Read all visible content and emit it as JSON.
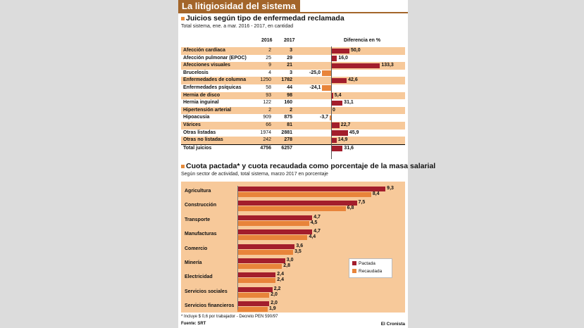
{
  "title": "La litigiosidad del sistema",
  "section1": {
    "title": "Juicios según tipo de enfermedad reclamada",
    "subtitle": "Total sistema, ene. a mar. 2016 - 2017, en cantidad",
    "col_2016": "2016",
    "col_2017": "2017",
    "col_diff": "Diferencia en %"
  },
  "section2": {
    "title": "Cuota pactada* y cuota recaudada como porcentaje de la masa salarial",
    "subtitle": "Según sector de actividad, total sistema, marzo 2017 en porcentaje"
  },
  "footnote": "* Incluye $ 0,6 por trabajador - Decreto PEN 590/97",
  "source": "Fuente: SRT",
  "brand": "El Cronista",
  "colors": {
    "pos": "#a31e2c",
    "neg": "#e8843a",
    "band": "#f7c99a",
    "title": "#a3652a"
  },
  "chart_data": [
    {
      "type": "table",
      "columns": [
        "",
        "2016",
        "2017",
        "Diferencia en %"
      ],
      "rows": [
        {
          "label": "Afección cardíaca",
          "v2016": "2",
          "v2017": "3",
          "diff": 50.0,
          "diff_label": "50,0"
        },
        {
          "label": "Afección pulmonar (EPOC)",
          "v2016": "25",
          "v2017": "29",
          "diff": 16.0,
          "diff_label": "16,0"
        },
        {
          "label": "Afecciones visuales",
          "v2016": "9",
          "v2017": "21",
          "diff": 133.3,
          "diff_label": "133,3"
        },
        {
          "label": "Brucelosis",
          "v2016": "4",
          "v2017": "3",
          "diff": -25.0,
          "diff_label": "-25,0"
        },
        {
          "label": "Enfermedades de columna",
          "v2016": "1250",
          "v2017": "1782",
          "diff": 42.6,
          "diff_label": "42,6"
        },
        {
          "label": "Enfermedades psíquicas",
          "v2016": "58",
          "v2017": "44",
          "diff": -24.1,
          "diff_label": "-24,1"
        },
        {
          "label": "Hernia de disco",
          "v2016": "93",
          "v2017": "98",
          "diff": 5.4,
          "diff_label": "5,4"
        },
        {
          "label": "Hernia inguinal",
          "v2016": "122",
          "v2017": "160",
          "diff": 31.1,
          "diff_label": "31,1"
        },
        {
          "label": "Hipertensión arterial",
          "v2016": "2",
          "v2017": "2",
          "diff": 0,
          "diff_label": "0"
        },
        {
          "label": "Hipoacusia",
          "v2016": "909",
          "v2017": "875",
          "diff": -3.7,
          "diff_label": "-3,7"
        },
        {
          "label": "Várices",
          "v2016": "66",
          "v2017": "81",
          "diff": 22.7,
          "diff_label": "22,7"
        },
        {
          "label": "Otras listadas",
          "v2016": "1974",
          "v2017": "2881",
          "diff": 45.9,
          "diff_label": "45,9"
        },
        {
          "label": "Otras no listadas",
          "v2016": "242",
          "v2017": "278",
          "diff": 14.9,
          "diff_label": "14,9"
        },
        {
          "label": "Total juicios",
          "v2016": "4756",
          "v2017": "6257",
          "diff": 31.6,
          "diff_label": "31,6",
          "total": true
        }
      ]
    },
    {
      "type": "bar",
      "orientation": "horizontal",
      "categories": [
        "Agricultura",
        "Construcción",
        "Transporte",
        "Manufacturas",
        "Comercio",
        "Minería",
        "Electricidad",
        "Servicios sociales",
        "Servicios financieros"
      ],
      "series": [
        {
          "name": "Pactada",
          "values": [
            9.3,
            7.5,
            4.7,
            4.7,
            3.6,
            3.0,
            2.4,
            2.2,
            2.0
          ],
          "labels": [
            "9,3",
            "7,5",
            "4,7",
            "4,7",
            "3,6",
            "3,0",
            "2,4",
            "2,2",
            "2,0"
          ]
        },
        {
          "name": "Recaudada",
          "values": [
            8.4,
            6.8,
            4.5,
            4.4,
            3.5,
            2.8,
            2.4,
            2.0,
            1.9
          ],
          "labels": [
            "8,4",
            "6,8",
            "4,5",
            "4,4",
            "3,5",
            "2,8",
            "2,4",
            "2,0",
            "1,9"
          ]
        }
      ],
      "legend_position": "right"
    }
  ]
}
